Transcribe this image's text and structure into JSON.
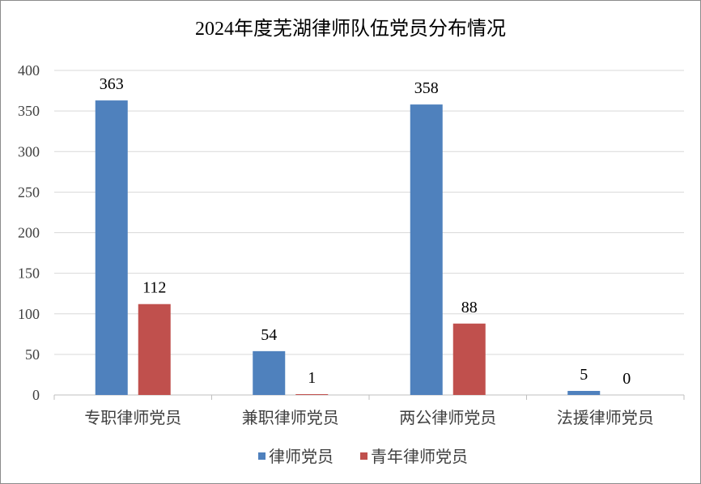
{
  "chart_data": {
    "type": "bar",
    "title": "2024年度芜湖律师队伍党员分布情况",
    "categories": [
      "专职律师党员",
      "兼职律师党员",
      "两公律师党员",
      "法援律师党员"
    ],
    "series": [
      {
        "name": "律师党员",
        "values": [
          363,
          54,
          358,
          5
        ],
        "color": "#4f81bd"
      },
      {
        "name": "青年律师党员",
        "values": [
          112,
          1,
          88,
          0
        ],
        "color": "#c0504d"
      }
    ],
    "y_ticks": [
      "0",
      "50",
      "100",
      "150",
      "200",
      "250",
      "300",
      "350",
      "400"
    ],
    "ylim": [
      0,
      400
    ],
    "grid": true,
    "legend_position": "bottom"
  }
}
